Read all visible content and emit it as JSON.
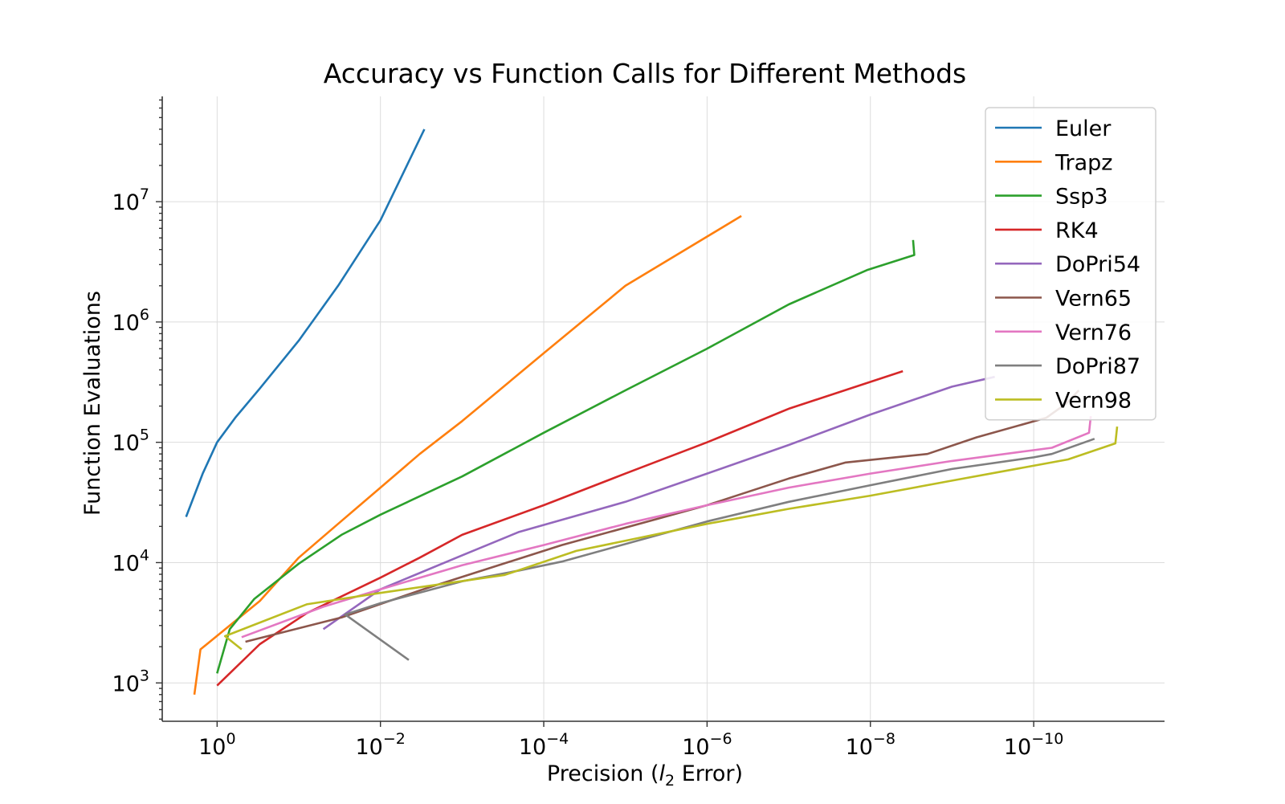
{
  "chart_data": {
    "type": "line",
    "title": "Accuracy vs Function Calls for Different Methods",
    "xlabel": "Precision (",
    "xlabel_italic": "l",
    "xlabel_sub": "2",
    "xlabel_suffix": " Error)",
    "ylabel": "Function Evaluations",
    "x_scale": "log",
    "y_scale": "log",
    "x_axis_inverted": true,
    "xlim": [
      4.7,
      2.5e-12
    ],
    "ylim": [
      480,
      75000000
    ],
    "x_ticks": [
      {
        "value": 1,
        "base": "10",
        "exp": "0"
      },
      {
        "value": 0.01,
        "base": "10",
        "exp": "−2"
      },
      {
        "value": 0.0001,
        "base": "10",
        "exp": "−4"
      },
      {
        "value": 1e-06,
        "base": "10",
        "exp": "−6"
      },
      {
        "value": 1e-08,
        "base": "10",
        "exp": "−8"
      },
      {
        "value": 1e-10,
        "base": "10",
        "exp": "−10"
      }
    ],
    "y_ticks": [
      {
        "value": 1000,
        "base": "10",
        "exp": "3"
      },
      {
        "value": 10000,
        "base": "10",
        "exp": "4"
      },
      {
        "value": 100000,
        "base": "10",
        "exp": "5"
      },
      {
        "value": 1000000,
        "base": "10",
        "exp": "6"
      },
      {
        "value": 10000000,
        "base": "10",
        "exp": "7"
      }
    ],
    "grid": true,
    "legend_position": "top-right",
    "series": [
      {
        "name": "Euler",
        "color": "#1f77b4",
        "x": [
          2.4,
          1.5,
          1.0,
          0.6,
          0.3,
          0.1,
          0.033,
          0.01,
          0.0029
        ],
        "y": [
          24000,
          55000,
          100000,
          160000,
          280000,
          700000,
          2000000,
          7000000,
          40000000
        ]
      },
      {
        "name": "Trapz",
        "color": "#ff7f0e",
        "x": [
          1.9,
          1.6,
          0.3,
          0.1,
          0.033,
          0.01,
          0.0033,
          0.001,
          0.0001,
          1e-05,
          3.8e-07
        ],
        "y": [
          800,
          1900,
          4800,
          11000,
          21000,
          42000,
          80000,
          150000,
          550000,
          2000000,
          7600000
        ]
      },
      {
        "name": "Ssp3",
        "color": "#2ca02c",
        "x": [
          1.0,
          0.7,
          0.35,
          0.1,
          0.03,
          0.01,
          0.001,
          0.0001,
          1e-05,
          1e-06,
          1e-07,
          1.1e-08,
          2.9e-09,
          3e-09
        ],
        "y": [
          1200,
          2800,
          5000,
          9800,
          17000,
          25000,
          52000,
          120000,
          270000,
          600000,
          1400000,
          2700000,
          3600000,
          4800000
        ]
      },
      {
        "name": "RK4",
        "color": "#d62728",
        "x": [
          1.0,
          0.3,
          0.08,
          0.01,
          0.0033,
          0.001,
          0.0001,
          1e-05,
          1e-06,
          1e-07,
          4e-09
        ],
        "y": [
          950,
          2100,
          3800,
          7500,
          11000,
          17000,
          30000,
          55000,
          100000,
          190000,
          390000
        ]
      },
      {
        "name": "DoPri54",
        "color": "#9467bd",
        "x": [
          0.05,
          0.01,
          0.001,
          0.0002,
          1e-05,
          1e-06,
          1e-07,
          1e-08,
          1e-09,
          3e-10
        ],
        "y": [
          2800,
          6000,
          11500,
          18000,
          32000,
          55000,
          95000,
          170000,
          290000,
          350000
        ]
      },
      {
        "name": "Vern65",
        "color": "#8c564b",
        "x": [
          0.45,
          0.03,
          0.003,
          6e-05,
          1e-06,
          1e-07,
          2e-08,
          2e-09,
          5e-10,
          7e-11,
          4e-11,
          2.8e-11
        ],
        "y": [
          2200,
          3500,
          6000,
          14000,
          30000,
          50000,
          68000,
          80000,
          110000,
          160000,
          210000,
          270000
        ]
      },
      {
        "name": "Vern76",
        "color": "#e377c2",
        "x": [
          0.5,
          0.05,
          0.01,
          0.001,
          0.0001,
          1e-05,
          1e-06,
          1e-07,
          1e-08,
          1e-09,
          6e-11,
          2.1e-11,
          2e-11
        ],
        "y": [
          2400,
          4300,
          6000,
          9500,
          14000,
          21000,
          30000,
          42000,
          55000,
          70000,
          90000,
          120000,
          165000
        ]
      },
      {
        "name": "DoPri87",
        "color": "#7f7f7f",
        "x": [
          0.0045,
          0.027,
          0.01,
          0.001,
          0.0002,
          6e-05,
          1e-06,
          1e-07,
          1e-08,
          1e-09,
          1e-10,
          6e-11,
          1.8e-11
        ],
        "y": [
          1550,
          3700,
          4600,
          7000,
          8600,
          10200,
          22000,
          32000,
          44000,
          60000,
          75000,
          80000,
          107000
        ]
      },
      {
        "name": "Vern98",
        "color": "#bcbd22",
        "x": [
          0.5,
          0.8,
          0.08,
          0.01,
          0.0003,
          4e-05,
          1e-06,
          1e-07,
          1e-08,
          1e-09,
          3.8e-11,
          1e-11,
          9.5e-12
        ],
        "y": [
          1900,
          2450,
          4500,
          5600,
          7900,
          12500,
          21000,
          28000,
          36000,
          48000,
          72000,
          98000,
          135000
        ]
      }
    ]
  }
}
